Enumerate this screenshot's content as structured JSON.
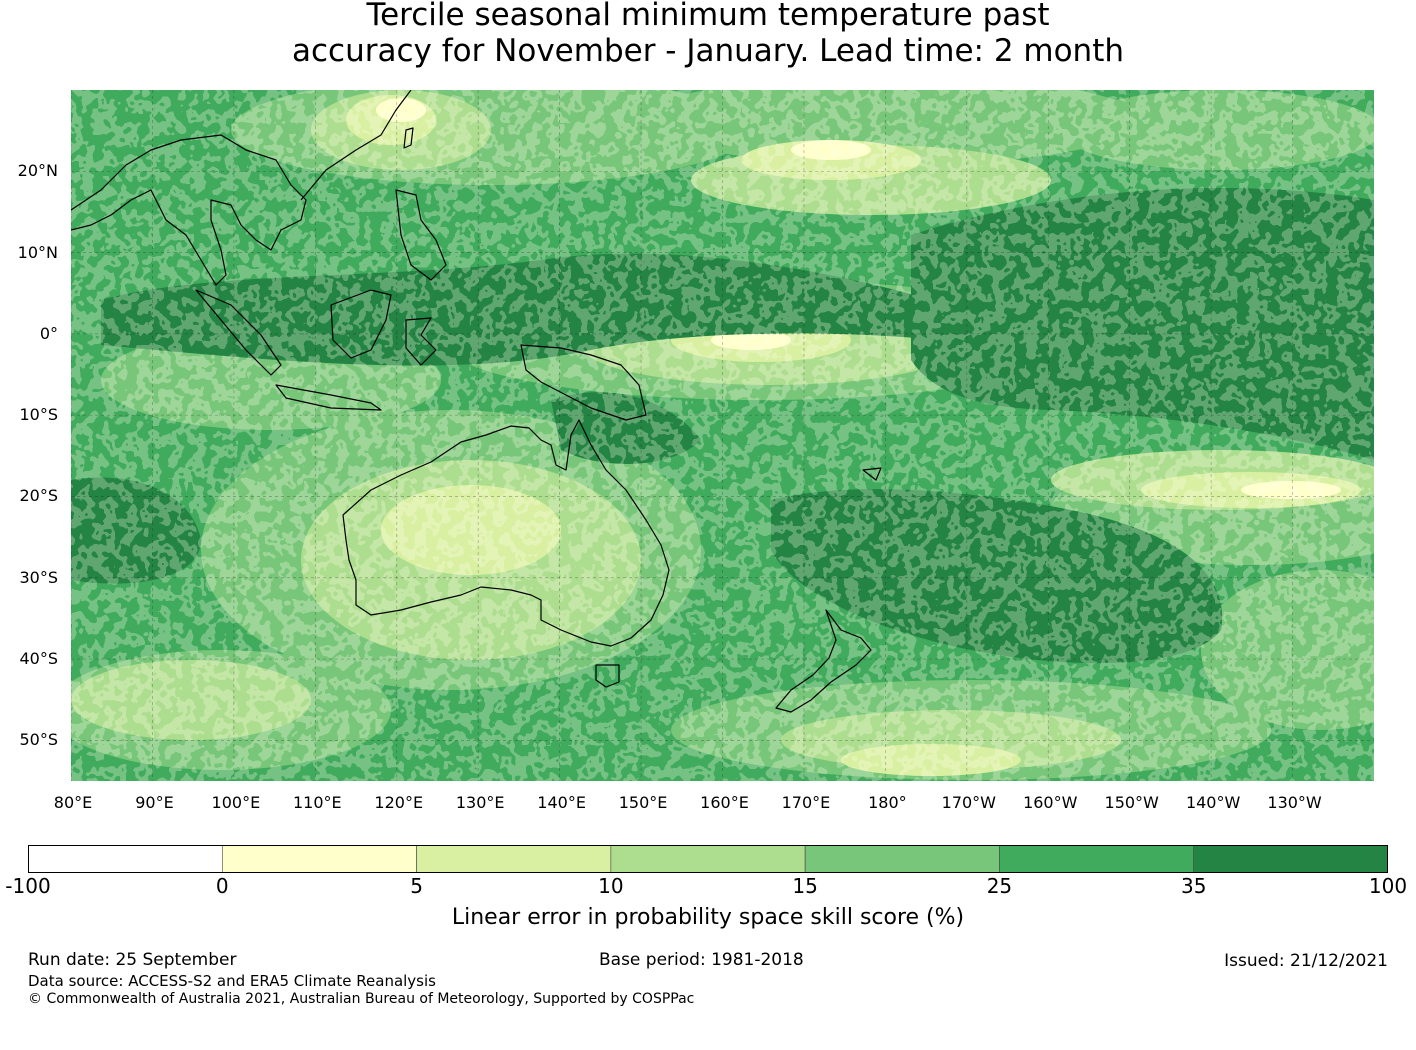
{
  "title": {
    "line1": "Tercile seasonal minimum temperature past",
    "line2": "accuracy for November - January. Lead time: 2 month"
  },
  "map": {
    "lon_range": [
      80,
      240
    ],
    "lat_range": [
      -55,
      30
    ],
    "lat_labels": [
      "20°N",
      "10°N",
      "0°",
      "10°S",
      "20°S",
      "30°S",
      "40°S",
      "50°S"
    ],
    "lat_values": [
      20,
      10,
      0,
      -10,
      -20,
      -30,
      -40,
      -50
    ],
    "lon_labels": [
      "80°E",
      "90°E",
      "100°E",
      "110°E",
      "120°E",
      "130°E",
      "140°E",
      "150°E",
      "160°E",
      "170°E",
      "180°",
      "170°W",
      "160°W",
      "150°W",
      "140°W",
      "130°W"
    ],
    "lon_values": [
      80,
      90,
      100,
      110,
      120,
      130,
      140,
      150,
      160,
      170,
      180,
      190,
      200,
      210,
      220,
      230
    ],
    "gridlines": true,
    "coastlines": true
  },
  "colorbar": {
    "ticks": [
      "-100",
      "0",
      "5",
      "10",
      "15",
      "25",
      "35",
      "100"
    ],
    "colors": [
      "#ffffff",
      "#ffffcc",
      "#d9f0a3",
      "#addd8e",
      "#78c679",
      "#41ab5d",
      "#238443"
    ],
    "label": "Linear error in probability space skill score (%)"
  },
  "footer": {
    "run_date": "Run date: 25 September",
    "base_period": "Base period: 1981-2018",
    "issued": "Issued: 21/12/2021",
    "data_source": "Data source: ACCESS-S2 and ERA5 Climate Reanalysis",
    "copyright": "© Commonwealth of Australia 2021, Australian Bureau of Meteorology, Supported by COSPPac"
  }
}
